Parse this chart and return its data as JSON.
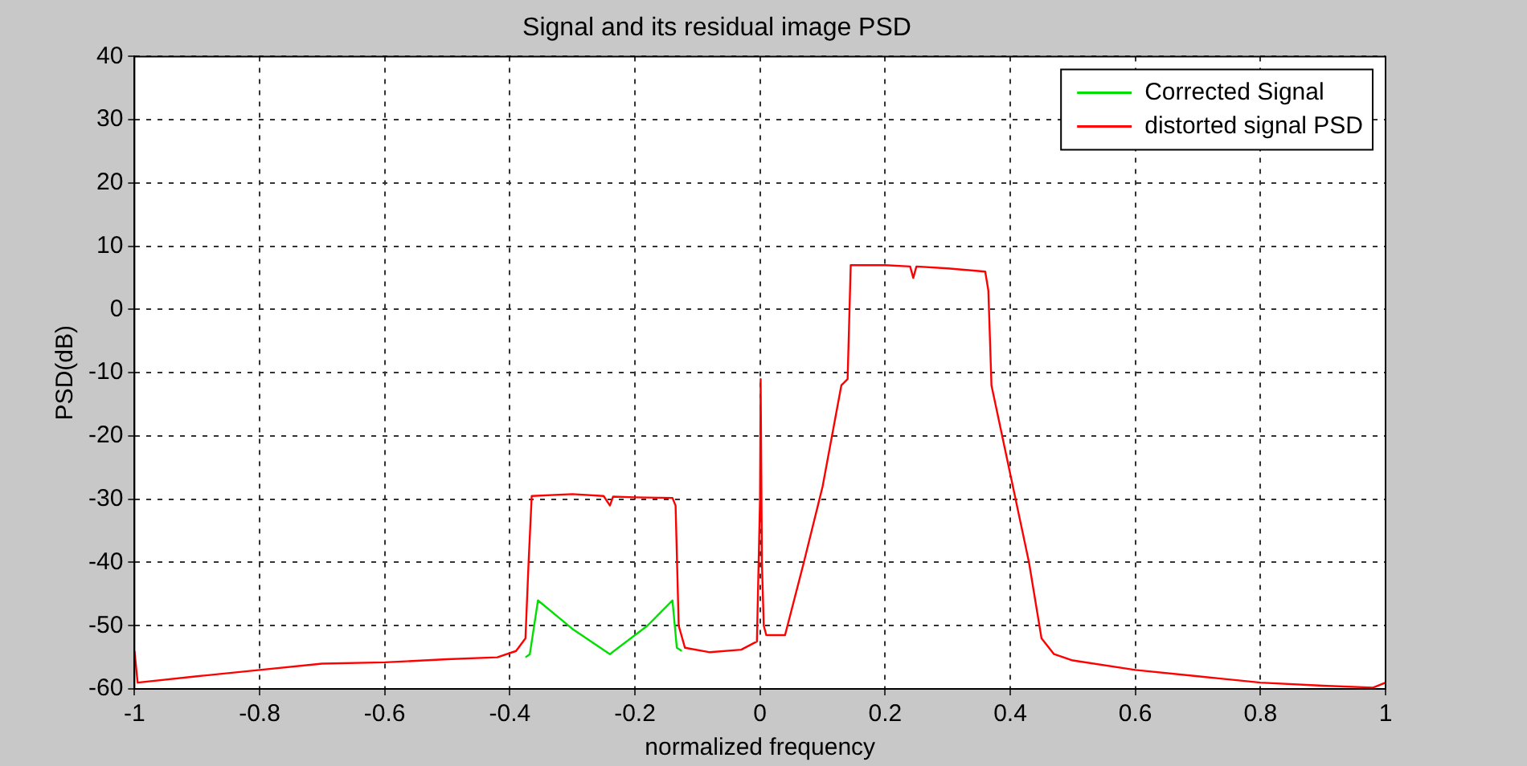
{
  "chart_data": {
    "type": "line",
    "title": "Signal and its residual image PSD",
    "xlabel": "normalized frequency",
    "ylabel": "PSD(dB)",
    "xlim": [
      -1,
      1
    ],
    "xticks": [
      -1,
      -0.8,
      -0.6,
      -0.4,
      -0.2,
      0,
      0.2,
      0.4,
      0.6,
      0.8,
      1
    ],
    "ylim": [
      -60,
      40
    ],
    "yticks": [
      -60,
      -50,
      -40,
      -30,
      -20,
      -10,
      0,
      10,
      20,
      30,
      40
    ],
    "grid": true,
    "line_style": "solid",
    "marker": "none",
    "legend": "top right",
    "series": [
      {
        "name": "Corrected Signal",
        "color": "#00e000",
        "x": [
          -0.375,
          -0.368,
          -0.355,
          -0.3,
          -0.24,
          -0.18,
          -0.14,
          -0.133,
          -0.125
        ],
        "values": [
          -55,
          -54.5,
          -46,
          -50.5,
          -54.5,
          -50,
          -46,
          -53.5,
          -54
        ]
      },
      {
        "name": "distorted signal PSD",
        "color": "#ff0000",
        "x": [
          -1,
          -0.995,
          -0.9,
          -0.8,
          -0.7,
          -0.6,
          -0.5,
          -0.42,
          -0.39,
          -0.375,
          -0.37,
          -0.365,
          -0.3,
          -0.25,
          -0.24,
          -0.235,
          -0.2,
          -0.14,
          -0.135,
          -0.13,
          -0.12,
          -0.08,
          -0.03,
          -0.005,
          0,
          0.001,
          0.003,
          0.006,
          0.01,
          0.04,
          0.07,
          0.1,
          0.13,
          0.14,
          0.145,
          0.2,
          0.24,
          0.245,
          0.25,
          0.3,
          0.36,
          0.365,
          0.37,
          0.4,
          0.43,
          0.45,
          0.47,
          0.5,
          0.6,
          0.7,
          0.8,
          0.9,
          0.98,
          1
        ],
        "values": [
          -54,
          -59,
          -58,
          -57,
          -56,
          -55.8,
          -55.3,
          -55,
          -54,
          -52,
          -40,
          -29.5,
          -29.2,
          -29.5,
          -31,
          -29.6,
          -29.7,
          -29.8,
          -31,
          -50,
          -53.5,
          -54.2,
          -53.8,
          -52.5,
          -30,
          -11,
          -40,
          -50,
          -51.5,
          -51.5,
          -40,
          -28,
          -12,
          -11,
          7,
          7,
          6.8,
          5,
          6.8,
          6.5,
          6,
          3,
          -12,
          -26,
          -40,
          -52,
          -54.5,
          -55.5,
          -57,
          -58,
          -59,
          -59.5,
          -59.8,
          -59
        ]
      }
    ]
  }
}
